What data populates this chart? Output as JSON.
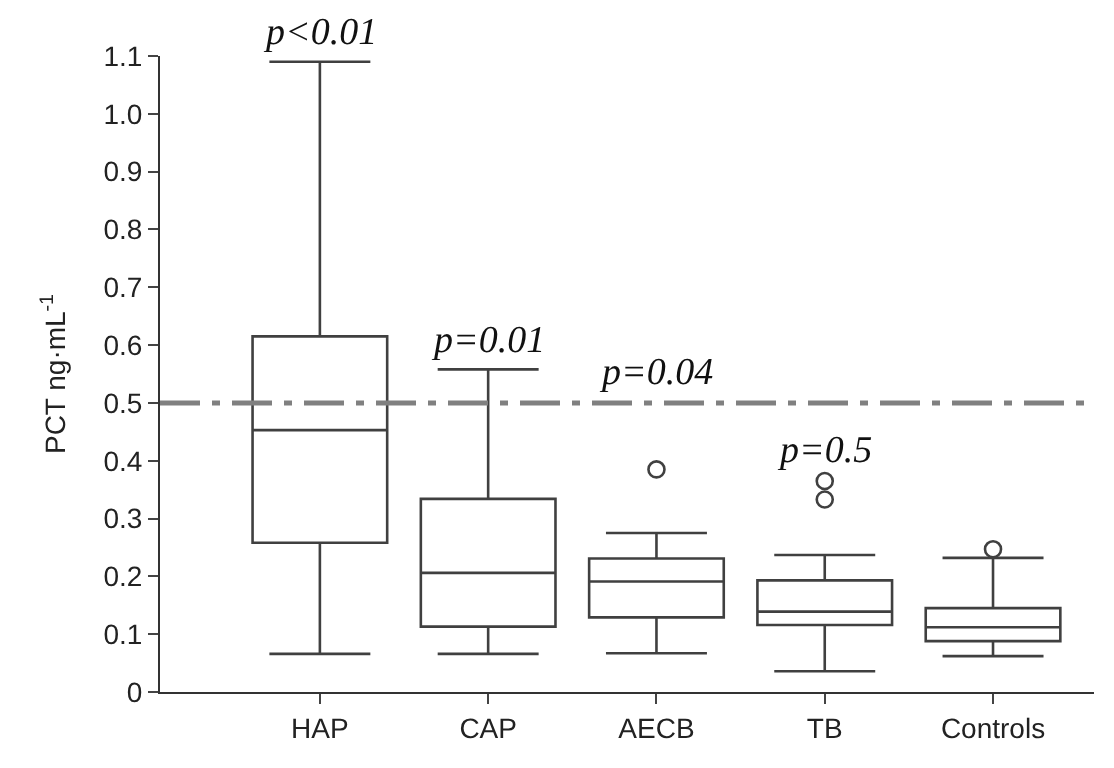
{
  "chart_data": {
    "type": "box",
    "ylabel": "PCT ng·mL$^{-1}$",
    "categories": [
      "HAP",
      "CAP",
      "AECB",
      "TB",
      "Controls"
    ],
    "boxes": [
      {
        "low": 0.066,
        "q1": 0.258,
        "median": 0.453,
        "q3": 0.615,
        "high": 1.09
      },
      {
        "low": 0.066,
        "q1": 0.113,
        "median": 0.206,
        "q3": 0.334,
        "high": 0.558
      },
      {
        "low": 0.067,
        "q1": 0.129,
        "median": 0.191,
        "q3": 0.231,
        "high": 0.275,
        "outliers": [
          0.385
        ]
      },
      {
        "low": 0.036,
        "q1": 0.116,
        "median": 0.139,
        "q3": 0.193,
        "high": 0.237,
        "outliers": [
          0.333,
          0.365
        ]
      },
      {
        "low": 0.062,
        "q1": 0.088,
        "median": 0.112,
        "q3": 0.145,
        "high": 0.232,
        "outliers": [
          0.247
        ]
      }
    ],
    "color": "#404040",
    "ylim": [
      0,
      1.1
    ],
    "yticks": [
      0,
      0.1,
      0.2,
      0.3,
      0.4,
      0.5,
      0.6,
      0.7,
      0.8,
      0.9,
      {
        "value": 1.0,
        "label": "1.0"
      },
      1.1
    ],
    "ref_lines": [
      {
        "axis": "y",
        "value": 0.5,
        "color": "#808080",
        "line_style": "dashdot"
      }
    ],
    "annotations": [
      "p<0.01",
      "p=0.01",
      "p=0.04",
      "p=0.5"
    ]
  }
}
